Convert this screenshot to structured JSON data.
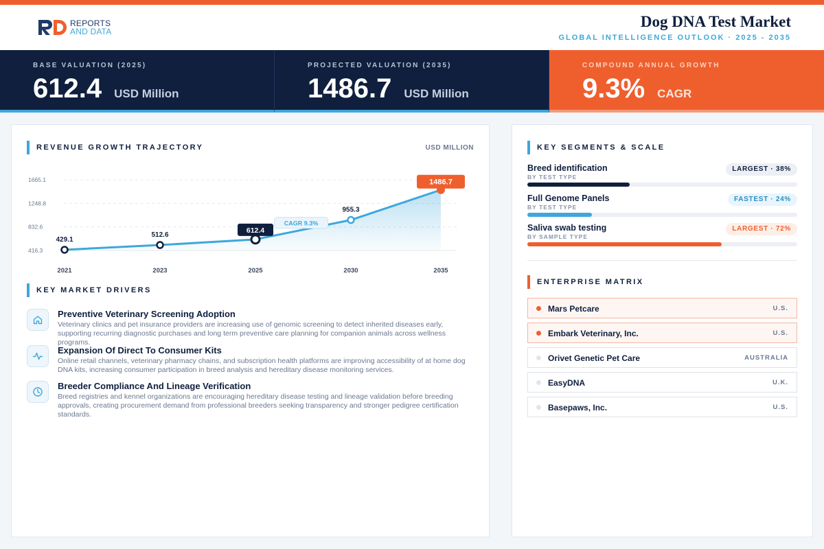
{
  "header": {
    "logo_line1": "REPORTS",
    "logo_line2": "AND DATA",
    "title": "Dog DNA Test Market",
    "subtitle": "GLOBAL INTELLIGENCE OUTLOOK  ·  2025 - 2035"
  },
  "kpis": [
    {
      "label": "BASE VALUATION (2025)",
      "value": "612.4",
      "unit": "USD Million"
    },
    {
      "label": "PROJECTED VALUATION (2035)",
      "value": "1486.7",
      "unit": "USD Million"
    },
    {
      "label": "COMPOUND ANNUAL GROWTH",
      "value": "9.3%",
      "unit": "CAGR"
    }
  ],
  "growth": {
    "title": "REVENUE GROWTH TRAJECTORY",
    "unit_label": "USD MILLION",
    "cagr_label": "CAGR 9.3%"
  },
  "chart_data": {
    "type": "area",
    "title": "REVENUE GROWTH TRAJECTORY",
    "ylabel": "USD MILLION",
    "x": [
      "2021",
      "2023",
      "2025",
      "2030",
      "2035"
    ],
    "values": [
      429.1,
      512.6,
      612.4,
      955.3,
      1486.7
    ],
    "value_labels": [
      "429.1",
      "512.6",
      "612.4",
      "955.3",
      "1486.7"
    ],
    "y_ticks": [
      "1665.1",
      "1248.8",
      "832.6",
      "416.3"
    ],
    "ylim": [
      416.3,
      1665.1
    ],
    "grid": true,
    "annotation": "CAGR 9.3%",
    "colors": {
      "line": "#3ea7db",
      "highlight": "#0f1f3d",
      "final": "#ef5f2e"
    }
  },
  "drivers": {
    "title": "KEY MARKET DRIVERS",
    "items": [
      {
        "title": "Preventive Veterinary Screening Adoption",
        "desc": "Veterinary clinics and pet insurance providers are increasing use of genomic screening to detect inherited diseases early, supporting recurring diagnostic purchases and long term preventive care planning for companion animals across wellness programs.",
        "icon": "home-icon"
      },
      {
        "title": "Expansion Of Direct To Consumer Kits",
        "desc": "Online retail channels, veterinary pharmacy chains, and subscription health platforms are improving accessibility of at home dog DNA kits, increasing consumer participation in breed analysis and hereditary disease monitoring services.",
        "icon": "pulse-icon"
      },
      {
        "title": "Breeder Compliance And Lineage Verification",
        "desc": "Breed registries and kennel organizations are encouraging hereditary disease testing and lineage validation before breeding approvals, creating procurement demand from professional breeders seeking transparency and stronger pedigree certification standards.",
        "icon": "clock-icon"
      }
    ]
  },
  "segments": {
    "title": "KEY SEGMENTS & SCALE",
    "items": [
      {
        "name": "Breed identification",
        "sub": "BY TEST TYPE",
        "badge": "LARGEST · 38%",
        "share": 0.38,
        "color": "#0f1f3d",
        "badge_bg": "#eceff4",
        "badge_fg": "#0f1f3d"
      },
      {
        "name": "Full Genome Panels",
        "sub": "BY TEST TYPE",
        "badge": "FASTEST · 24%",
        "share": 0.24,
        "color": "#3ea7db",
        "badge_bg": "#e8f5fc",
        "badge_fg": "#2b8ec2"
      },
      {
        "name": "Saliva swab testing",
        "sub": "BY SAMPLE TYPE",
        "badge": "LARGEST · 72%",
        "share": 0.72,
        "color": "#ef5f2e",
        "badge_bg": "#fdeee8",
        "badge_fg": "#ef5f2e"
      }
    ]
  },
  "enterprise": {
    "title": "ENTERPRISE MATRIX",
    "items": [
      {
        "name": "Mars Petcare",
        "country": "U.S.",
        "highlight": true
      },
      {
        "name": "Embark Veterinary, Inc.",
        "country": "U.S.",
        "highlight": true
      },
      {
        "name": "Orivet Genetic Pet Care",
        "country": "AUSTRALIA",
        "highlight": false
      },
      {
        "name": "EasyDNA",
        "country": "U.K.",
        "highlight": false
      },
      {
        "name": "Basepaws, Inc.",
        "country": "U.S.",
        "highlight": false
      }
    ]
  }
}
